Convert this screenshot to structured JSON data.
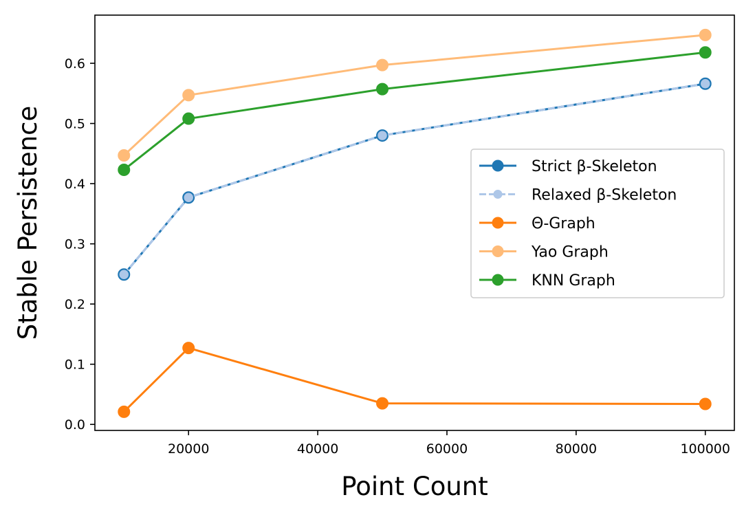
{
  "chart_data": {
    "type": "line",
    "title": "",
    "xlabel": "Point Count",
    "ylabel": "Stable Persistence",
    "xlim": [
      5500,
      104500
    ],
    "ylim": [
      -0.01,
      0.68
    ],
    "xticks": [
      20000,
      40000,
      60000,
      80000,
      100000
    ],
    "xtick_labels": [
      "20000",
      "40000",
      "60000",
      "80000",
      "100000"
    ],
    "yticks": [
      0.0,
      0.1,
      0.2,
      0.3,
      0.4,
      0.5,
      0.6
    ],
    "ytick_labels": [
      "0.0",
      "0.1",
      "0.2",
      "0.3",
      "0.4",
      "0.5",
      "0.6"
    ],
    "grid": false,
    "legend_position": "center-right",
    "x": [
      10000,
      20000,
      50000,
      100000
    ],
    "series": [
      {
        "name": "Strict β-Skeleton",
        "values": [
          0.249,
          0.377,
          0.48,
          0.566
        ],
        "color": "#1f77b4",
        "line_style": "solid",
        "marker_fill": "#1f77b4"
      },
      {
        "name": "Relaxed β-Skeleton",
        "values": [
          0.249,
          0.377,
          0.48,
          0.566
        ],
        "color": "#aec7e8",
        "line_style": "dashed",
        "marker_fill": "#aec7e8"
      },
      {
        "name": "Θ-Graph",
        "values": [
          0.021,
          0.127,
          0.035,
          0.034
        ],
        "color": "#ff7f0e",
        "line_style": "solid",
        "marker_fill": "#ff7f0e"
      },
      {
        "name": "Yao Graph",
        "values": [
          0.447,
          0.547,
          0.597,
          0.647
        ],
        "color": "#ffbb78",
        "line_style": "solid",
        "marker_fill": "#ffbb78"
      },
      {
        "name": "KNN Graph",
        "values": [
          0.423,
          0.508,
          0.557,
          0.618
        ],
        "color": "#2ca02c",
        "line_style": "solid",
        "marker_fill": "#2ca02c"
      }
    ]
  }
}
